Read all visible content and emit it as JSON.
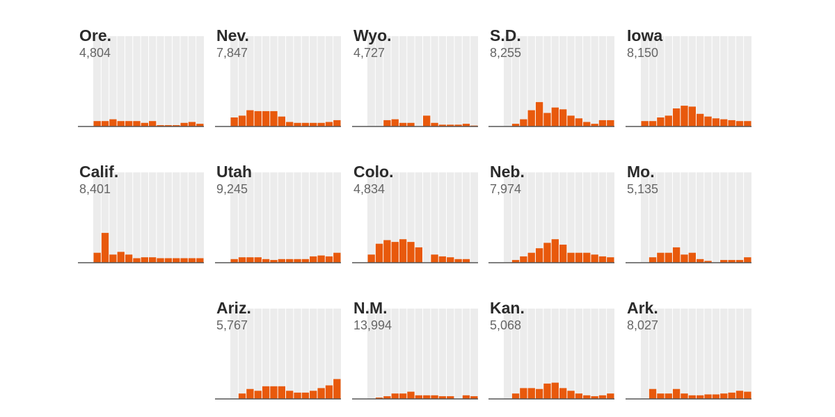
{
  "colors": {
    "bar": "#e8590c",
    "background_band": "#ececec",
    "baseline": "#555555"
  },
  "chart_data": [
    {
      "type": "bar",
      "title": "Ore.",
      "total": "4,804",
      "values": [
        0.6,
        0.6,
        0.8,
        0.6,
        0.6,
        0.6,
        0.4,
        0.6,
        0.15,
        0.15,
        0.15,
        0.4,
        0.5,
        0.3
      ],
      "ylim": [
        0,
        10
      ]
    },
    {
      "type": "bar",
      "title": "Nev.",
      "total": "7,847",
      "values": [
        1.0,
        1.2,
        1.8,
        1.7,
        1.7,
        1.7,
        1.1,
        0.5,
        0.4,
        0.4,
        0.4,
        0.4,
        0.5,
        0.7
      ],
      "ylim": [
        0,
        10
      ]
    },
    {
      "type": "bar",
      "title": "Wyo.",
      "total": "4,727",
      "values": [
        0,
        0,
        0.7,
        0.8,
        0.4,
        0.4,
        0,
        1.2,
        0.4,
        0.2,
        0.2,
        0.2,
        0.3,
        0.1
      ],
      "ylim": [
        0,
        10
      ]
    },
    {
      "type": "bar",
      "title": "S.D.",
      "total": "8,255",
      "values": [
        0,
        0.3,
        0.8,
        1.8,
        2.7,
        1.5,
        2.1,
        1.9,
        1.2,
        0.9,
        0.5,
        0.3,
        0.7,
        0.7
      ],
      "ylim": [
        0,
        10
      ]
    },
    {
      "type": "bar",
      "title": "Iowa",
      "total": "8,150",
      "values": [
        0.6,
        0.6,
        1.0,
        1.2,
        2.0,
        2.3,
        2.2,
        1.4,
        1.1,
        0.9,
        0.8,
        0.7,
        0.6,
        0.6
      ],
      "ylim": [
        0,
        10
      ]
    },
    {
      "type": "bar",
      "title": "Calif.",
      "total": "8,401",
      "values": [
        1.1,
        3.3,
        0.9,
        1.2,
        0.9,
        0.5,
        0.6,
        0.6,
        0.5,
        0.5,
        0.5,
        0.5,
        0.5,
        0.5
      ],
      "ylim": [
        0,
        10
      ]
    },
    {
      "type": "bar",
      "title": "Utah",
      "total": "9,245",
      "values": [
        0.4,
        0.6,
        0.6,
        0.6,
        0.4,
        0.3,
        0.4,
        0.4,
        0.4,
        0.4,
        0.7,
        0.8,
        0.7,
        1.1
      ],
      "ylim": [
        0,
        10
      ]
    },
    {
      "type": "bar",
      "title": "Colo.",
      "total": "4,834",
      "values": [
        0.9,
        2.1,
        2.5,
        2.3,
        2.6,
        2.3,
        1.7,
        0,
        0.9,
        0.7,
        0.6,
        0.4,
        0.4,
        0
      ],
      "ylim": [
        0,
        10
      ]
    },
    {
      "type": "bar",
      "title": "Neb.",
      "total": "7,974",
      "values": [
        0,
        0.3,
        0.7,
        1.1,
        1.6,
        2.2,
        2.6,
        2.0,
        1.1,
        1.1,
        1.1,
        0.9,
        0.7,
        0.6
      ],
      "ylim": [
        0,
        10
      ]
    },
    {
      "type": "bar",
      "title": "Mo.",
      "total": "5,135",
      "values": [
        0,
        0.6,
        1.1,
        1.1,
        1.7,
        0.9,
        1.1,
        0.4,
        0.2,
        0,
        0.3,
        0.3,
        0.3,
        0.6
      ],
      "ylim": [
        0,
        10
      ]
    },
    {
      "type": "bar",
      "title": "Ariz.",
      "total": "5,767",
      "values": [
        0,
        0.6,
        1.1,
        0.9,
        1.4,
        1.4,
        1.4,
        0.9,
        0.7,
        0.7,
        0.9,
        1.2,
        1.5,
        2.2
      ],
      "ylim": [
        0,
        10
      ]
    },
    {
      "type": "bar",
      "title": "N.M.",
      "total": "13,994",
      "values": [
        0,
        0.15,
        0.3,
        0.6,
        0.6,
        0.8,
        0.4,
        0.4,
        0.4,
        0.3,
        0.3,
        0,
        0.4,
        0.3
      ],
      "ylim": [
        0,
        10
      ]
    },
    {
      "type": "bar",
      "title": "Kan.",
      "total": "5,068",
      "values": [
        0,
        0.6,
        1.2,
        1.2,
        1.1,
        1.7,
        1.8,
        1.2,
        0.9,
        0.6,
        0.4,
        0.3,
        0.4,
        0.6
      ],
      "ylim": [
        0,
        10
      ]
    },
    {
      "type": "bar",
      "title": "Ark.",
      "total": "8,027",
      "values": [
        0,
        1.1,
        0.6,
        0.6,
        1.1,
        0.6,
        0.4,
        0.4,
        0.5,
        0.5,
        0.6,
        0.7,
        0.9,
        0.8
      ],
      "ylim": [
        0,
        10
      ]
    }
  ]
}
